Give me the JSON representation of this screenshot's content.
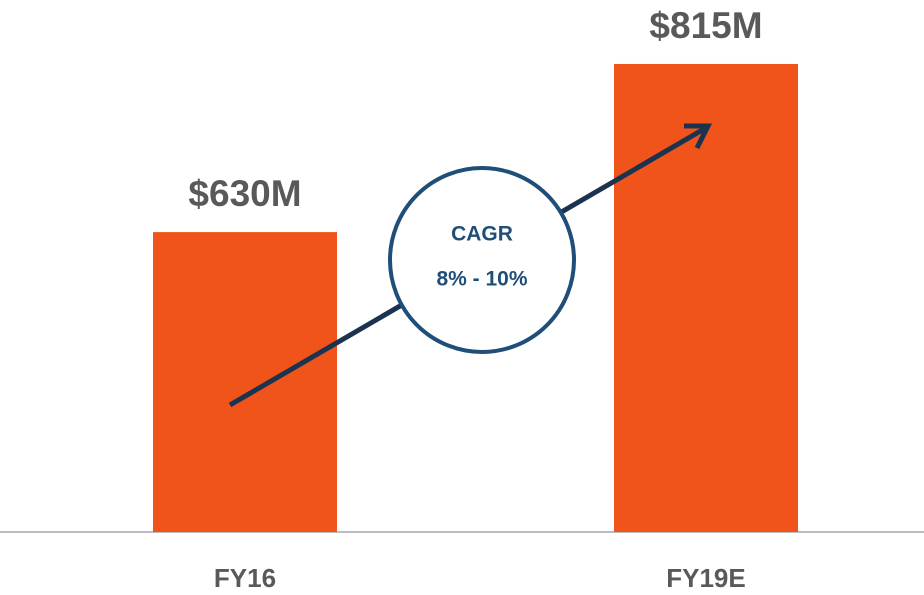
{
  "chart_data": {
    "type": "bar",
    "categories": [
      "FY16",
      "FY19E"
    ],
    "values": [
      630,
      815
    ],
    "value_labels": [
      "$630M",
      "$815M"
    ],
    "color": "#f0541a",
    "ylim": [
      300,
      870
    ],
    "annotations": [
      "CAGR",
      "8% - 10%"
    ]
  }
}
